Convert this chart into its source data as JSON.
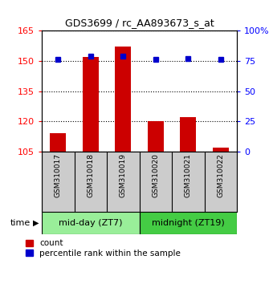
{
  "title": "GDS3699 / rc_AA893673_s_at",
  "samples": [
    "GSM310017",
    "GSM310018",
    "GSM310019",
    "GSM310020",
    "GSM310021",
    "GSM310022"
  ],
  "counts": [
    114,
    152,
    157,
    120,
    122,
    107
  ],
  "percentile_ranks": [
    76,
    79,
    79,
    76,
    77,
    76
  ],
  "ylim_left": [
    105,
    165
  ],
  "ylim_right": [
    0,
    100
  ],
  "yticks_left": [
    105,
    120,
    135,
    150,
    165
  ],
  "yticks_right": [
    0,
    25,
    50,
    75,
    100
  ],
  "ytick_labels_right": [
    "0",
    "25",
    "50",
    "75",
    "100%"
  ],
  "bar_color": "#cc0000",
  "dot_color": "#0000cc",
  "bg_plot": "#ffffff",
  "bg_label_gray": "#cccccc",
  "bg_label_green_light": "#99ee99",
  "bg_label_green_dark": "#44cc44",
  "group1_label": "mid-day (ZT7)",
  "group2_label": "midnight (ZT19)",
  "time_label": "time",
  "legend_count": "count",
  "legend_percentile": "percentile rank within the sample",
  "bar_width": 0.5,
  "baseline": 105
}
